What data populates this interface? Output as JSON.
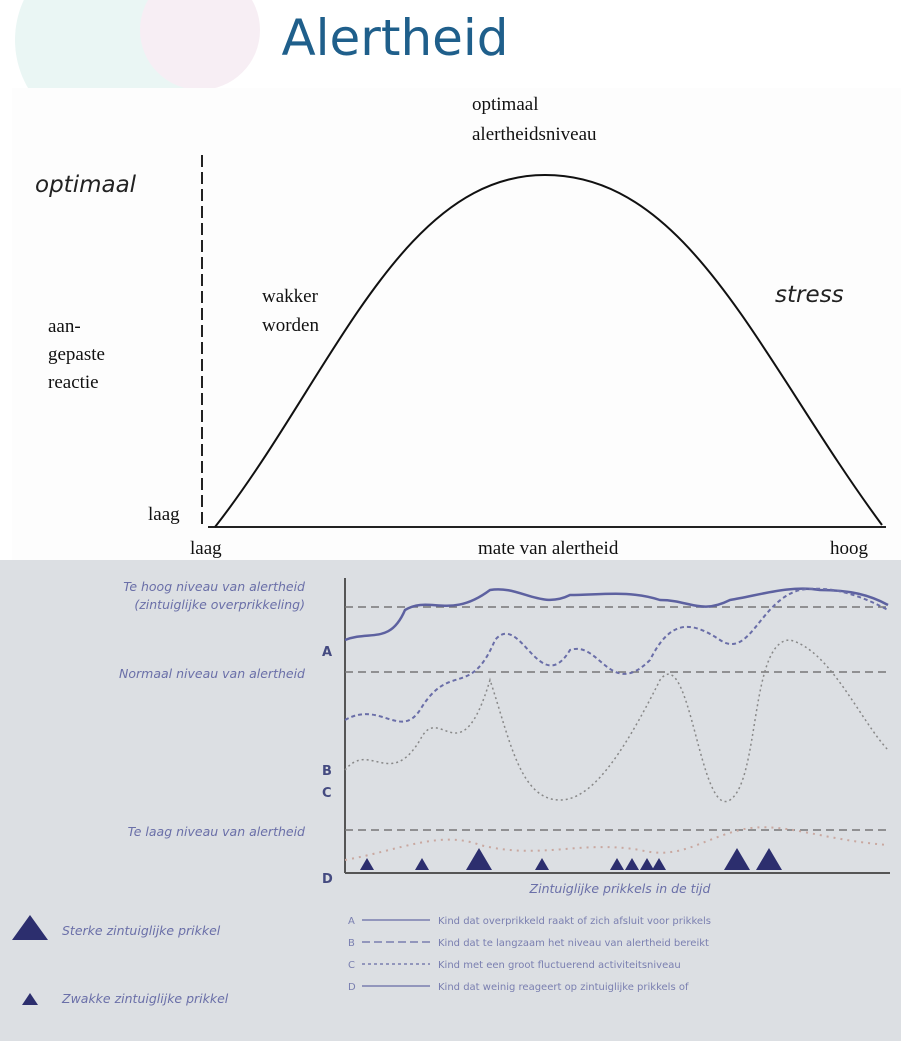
{
  "title": "Alertheid",
  "top": {
    "peak_label": [
      "optimaal",
      "alertheidsniveau"
    ],
    "y_top": "optimaal",
    "y_middle": [
      "aan-",
      "gepaste",
      "reactie"
    ],
    "y_bottom": "laag",
    "left_label": [
      "wakker",
      "worden"
    ],
    "right_label": "stress",
    "x_left": "laag",
    "x_title": "mate van alertheid",
    "x_right": "hoog"
  },
  "bottom": {
    "high_level": [
      "Te hoog niveau van alertheid",
      "(zintuiglijke overprikkeling)"
    ],
    "normal_level": "Normaal niveau van alertheid",
    "low_level": "Te laag niveau van alertheid",
    "letters": [
      "A",
      "B",
      "C",
      "D"
    ],
    "x_title": "Zintuiglijke prikkels in de tijd",
    "strong_stimulus": "Sterke zintuiglijke prikkel",
    "weak_stimulus": "Zwakke zintuiglijke prikkel",
    "legend": [
      {
        "letter": "A",
        "text": "Kind dat overprikkeld raakt of zich afsluit voor prikkels"
      },
      {
        "letter": "B",
        "text": "Kind dat te langzaam het niveau van alertheid bereikt"
      },
      {
        "letter": "C",
        "text": "Kind met een groot fluctuerend activiteitsniveau"
      },
      {
        "letter": "D",
        "text": "Kind dat weinig reageert op zintuiglijke prikkels of"
      }
    ]
  }
}
